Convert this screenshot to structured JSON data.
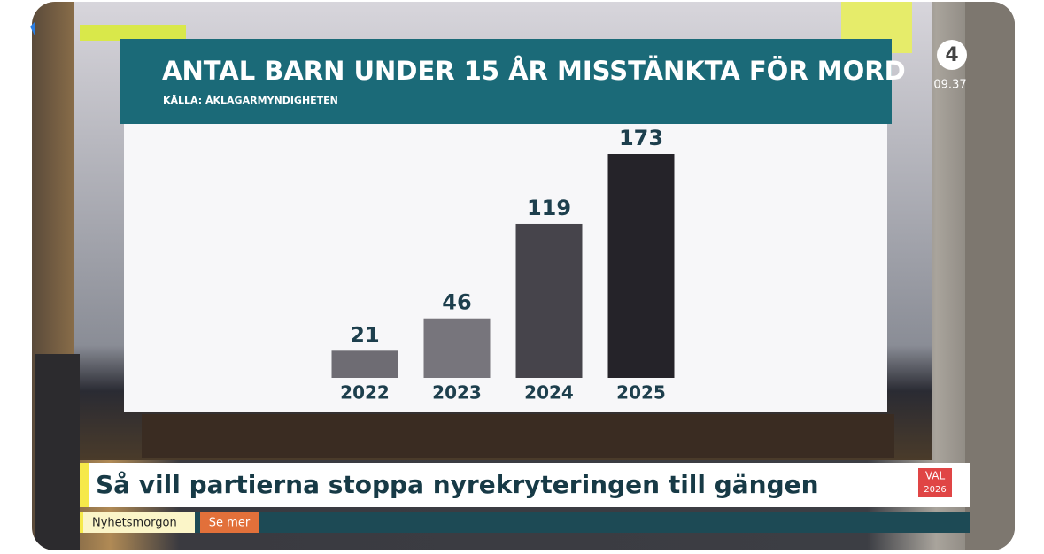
{
  "channel": {
    "logo": "4",
    "time": "09.37"
  },
  "chart_data": {
    "type": "bar",
    "title": "ANTAL BARN UNDER 15 ÅR MISSTÄNKTA FÖR MORD",
    "subtitle": "KÄLLA: ÅKLAGARMYNDIGHETEN",
    "categories": [
      "2022",
      "2023",
      "2024",
      "2025"
    ],
    "values": [
      21,
      46,
      119,
      173
    ],
    "colors": [
      "#6e6c73",
      "#77757c",
      "#46444b",
      "#252329"
    ]
  },
  "lower_third": {
    "headline": "Så vill partierna stoppa nyrekryteringen till gängen",
    "badge": [
      "VAL",
      "2026"
    ],
    "program": "Nyhetsmorgon",
    "link": "Se mer"
  }
}
